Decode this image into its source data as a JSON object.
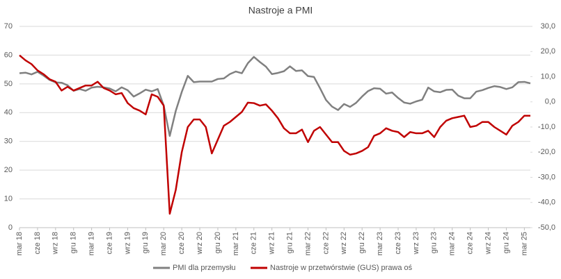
{
  "chart_data": {
    "type": "line",
    "title": "Nastroje a PMI",
    "categories": [
      "mar 18",
      null,
      null,
      "cze 18",
      null,
      null,
      "wrz 18",
      null,
      null,
      "gru 18",
      null,
      null,
      "mar 19",
      null,
      null,
      "cze 19",
      null,
      null,
      "wrz 19",
      null,
      null,
      "gru 19",
      null,
      null,
      "mar 20",
      null,
      null,
      "cze 20",
      null,
      null,
      "wrz 20",
      null,
      null,
      "gru 20",
      null,
      null,
      "mar 21",
      null,
      null,
      "cze 21",
      null,
      null,
      "wrz 21",
      null,
      null,
      "gru 21",
      null,
      null,
      "mar 22",
      null,
      null,
      "cze 22",
      null,
      null,
      "wrz 22",
      null,
      null,
      "gru 22",
      null,
      null,
      "mar 23",
      null,
      null,
      "cze 23",
      null,
      null,
      "wrz 23",
      null,
      null,
      "gru 23",
      null,
      null,
      "mar 24",
      null,
      null,
      "cze 24",
      null,
      null,
      "wrz 24",
      null,
      null,
      "gru 24",
      null,
      null,
      "mar 25",
      null
    ],
    "series": [
      {
        "name": "PMI dla przemysłu",
        "color": "#808080",
        "values": [
          53.7,
          53.9,
          53.3,
          54.2,
          52.9,
          51.4,
          50.5,
          50.4,
          49.5,
          47.6,
          48.2,
          47.6,
          48.7,
          49.0,
          48.8,
          48.4,
          47.4,
          48.8,
          47.8,
          45.6,
          46.7,
          48.0,
          47.4,
          48.2,
          42.4,
          31.9,
          40.6,
          47.2,
          52.8,
          50.6,
          50.8,
          50.8,
          50.8,
          51.7,
          51.9,
          53.4,
          54.3,
          53.7,
          57.2,
          59.4,
          57.6,
          56.0,
          53.4,
          53.8,
          54.4,
          56.1,
          54.5,
          54.7,
          52.7,
          52.4,
          48.5,
          44.4,
          42.1,
          40.9,
          43.0,
          42.0,
          43.4,
          45.6,
          47.5,
          48.5,
          48.3,
          46.6,
          47.0,
          45.1,
          43.5,
          43.1,
          43.9,
          44.5,
          48.7,
          47.4,
          47.1,
          47.9,
          48.0,
          45.9,
          45.0,
          45.0,
          47.3,
          47.8,
          48.6,
          49.2,
          48.9,
          48.2,
          48.8,
          50.6,
          50.7,
          50.2
        ]
      },
      {
        "name": "Nastroje w przetwórstwie (GUS) prawa oś",
        "color": "#c00000",
        "axis": "y2",
        "values": [
          18.5,
          16.5,
          15,
          12.5,
          11,
          9,
          8,
          4.5,
          6,
          4.5,
          5.5,
          6.5,
          6.5,
          8,
          5.5,
          4.5,
          3,
          3.5,
          -0.5,
          -2.5,
          -3.5,
          -5,
          3,
          2,
          -1.5,
          -44.5,
          -35,
          -20,
          -10,
          -7,
          -7,
          -10,
          -20.5,
          -15,
          -9.5,
          -8,
          -6,
          -4,
          -0.3,
          -0.5,
          -1.5,
          -1,
          -3.5,
          -6.5,
          -10.5,
          -12.5,
          -12.5,
          -11,
          -16,
          -11.5,
          -10,
          -13,
          -16,
          -16,
          -19.5,
          -21,
          -20.5,
          -19.5,
          -18,
          -13.5,
          -12.5,
          -10.5,
          -11.5,
          -12,
          -14,
          -12,
          -12.5,
          -12.5,
          -11.5,
          -14,
          -10,
          -7.5,
          -6.5,
          -6,
          -5.5,
          -10,
          -9.5,
          -8,
          -8,
          -10,
          -11.5,
          -13,
          -9.5,
          -8,
          -5.5,
          -5.5
        ]
      }
    ],
    "ylim": [
      0,
      70
    ],
    "yticks": [
      0,
      10,
      20,
      30,
      40,
      50,
      60,
      70
    ],
    "y2lim": [
      -50,
      30
    ],
    "y2ticks": [
      {
        "value": -50,
        "label": "-50,0"
      },
      {
        "value": -40,
        "label": "-40,0"
      },
      {
        "value": -30,
        "label": "-30,0"
      },
      {
        "value": -20,
        "label": "-20,0"
      },
      {
        "value": -10,
        "label": "-10,0"
      },
      {
        "value": 0,
        "label": "0,0"
      },
      {
        "value": 10,
        "label": "10,0"
      },
      {
        "value": 20,
        "label": "20,0"
      },
      {
        "value": 30,
        "label": "30,0"
      }
    ],
    "grid": true,
    "legend": "bottom"
  }
}
